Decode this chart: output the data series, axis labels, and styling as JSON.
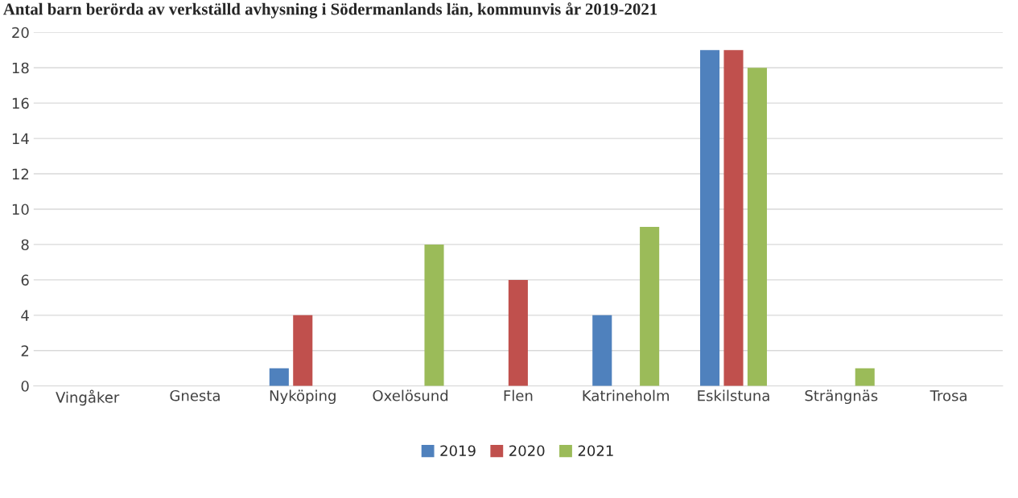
{
  "chart_data": {
    "type": "bar",
    "title": "Antal barn berörda av verkställd avhysning i Södermanlands län, kommunvis år 2019-2021",
    "categories": [
      "Vingåker",
      "Gnesta",
      "Nyköping",
      "Oxelösund",
      "Flen",
      "Katrineholm",
      "Eskilstuna",
      "Strängnäs",
      "Trosa"
    ],
    "series": [
      {
        "name": "2019",
        "color": "#4f81bd",
        "values": [
          0,
          0,
          1,
          0,
          0,
          4,
          19,
          0,
          0
        ]
      },
      {
        "name": "2020",
        "color": "#c0504d",
        "values": [
          0,
          0,
          4,
          0,
          6,
          0,
          19,
          0,
          0
        ]
      },
      {
        "name": "2021",
        "color": "#9bbb59",
        "values": [
          0,
          0,
          0,
          8,
          0,
          9,
          18,
          1,
          0
        ]
      }
    ],
    "ylim": [
      0,
      20
    ],
    "yticks": [
      0,
      2,
      4,
      6,
      8,
      10,
      12,
      14,
      16,
      18,
      20
    ],
    "grid": "y",
    "legend": "bottom"
  }
}
